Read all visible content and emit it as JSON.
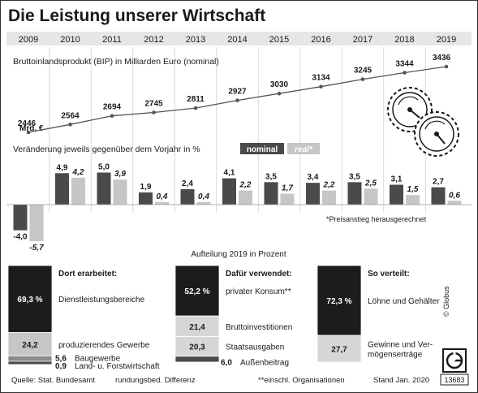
{
  "title": "Die Leistung unserer Wirtschaft",
  "chart_data": [
    {
      "type": "line",
      "title": "Bruttoinlandsprodukt (BIP) in Milliarden Euro (nominal)",
      "unit_label": "Mrd. €",
      "x": [
        "2009",
        "2010",
        "2011",
        "2012",
        "2013",
        "2014",
        "2015",
        "2016",
        "2017",
        "2018",
        "2019"
      ],
      "y": [
        2446,
        2564,
        2694,
        2745,
        2811,
        2927,
        3030,
        3134,
        3245,
        3344,
        3436
      ]
    },
    {
      "type": "bar",
      "title": "Veränderung jeweils gegenüber dem Vorjahr in %",
      "categories": [
        "2009",
        "2010",
        "2011",
        "2012",
        "2013",
        "2014",
        "2015",
        "2016",
        "2017",
        "2018",
        "2019"
      ],
      "series": [
        {
          "name": "nominal",
          "values": [
            -4.0,
            4.9,
            5.0,
            1.9,
            2.4,
            4.1,
            3.5,
            3.4,
            3.5,
            3.1,
            2.7
          ],
          "labels": [
            "-4,0",
            "4,9",
            "5,0",
            "1,9",
            "2,4",
            "4,1",
            "3,5",
            "3,4",
            "3,5",
            "3,1",
            "2,7"
          ]
        },
        {
          "name": "real*",
          "values": [
            -5.7,
            4.2,
            3.9,
            0.4,
            0.4,
            2.2,
            1.7,
            2.2,
            2.5,
            1.5,
            0.6
          ],
          "labels": [
            "-5,7",
            "4,2",
            "3,9",
            "0,4",
            "0,4",
            "2,2",
            "1,7",
            "2,2",
            "2,5",
            "1,5",
            "0,6"
          ]
        }
      ],
      "footnote": "*Preisanstieg herausgerechnet"
    },
    {
      "type": "stacked-bar",
      "title": "Aufteilung 2019 in Prozent",
      "panels": [
        {
          "heading": "Dort erarbeitet:",
          "segments": [
            {
              "value": 69.3,
              "value_label": "69,3 %",
              "label": "Dienstleistungsbereiche"
            },
            {
              "value": 24.2,
              "value_label": "24,2",
              "label": "produzierendes Gewerbe"
            },
            {
              "value": 5.6,
              "value_label": "5,6",
              "label": "Baugewerbe"
            },
            {
              "value": 0.9,
              "value_label": "0,9",
              "label": "Land- u. Forstwirtschaft"
            }
          ]
        },
        {
          "heading": "Dafür verwendet:",
          "segments": [
            {
              "value": 52.2,
              "value_label": "52,2 %",
              "label": "privater Konsum**"
            },
            {
              "value": 21.4,
              "value_label": "21,4",
              "label": "Bruttoinvestitionen"
            },
            {
              "value": 20.3,
              "value_label": "20,3",
              "label": "Staatsausgaben"
            },
            {
              "value": 6.0,
              "value_label": "6,0",
              "label": "Außenbeitrag"
            }
          ]
        },
        {
          "heading": "So verteilt:",
          "segments": [
            {
              "value": 72.3,
              "value_label": "72,3 %",
              "label": "Löhne und Gehälter"
            },
            {
              "value": 27.7,
              "value_label": "27,7",
              "label": "Gewinne und Vermögenserträge",
              "label_lines": [
                "Gewinne und Ver-",
                "mögenserträge"
              ]
            }
          ]
        }
      ]
    }
  ],
  "footer": {
    "source": "Quelle: Stat. Bundesamt",
    "rounding": "rundungsbed. Differenz",
    "org_note": "**einschl. Organisationen",
    "status": "Stand Jan. 2020"
  },
  "brand": {
    "copyright": "© Globus",
    "code": "13683"
  },
  "colors": {
    "dark": "#1c1c1c",
    "mid": "#4a4a4a",
    "light": "#c6c6c6",
    "grid": "#d0d0d0",
    "year_band": "#e6e6e6"
  }
}
